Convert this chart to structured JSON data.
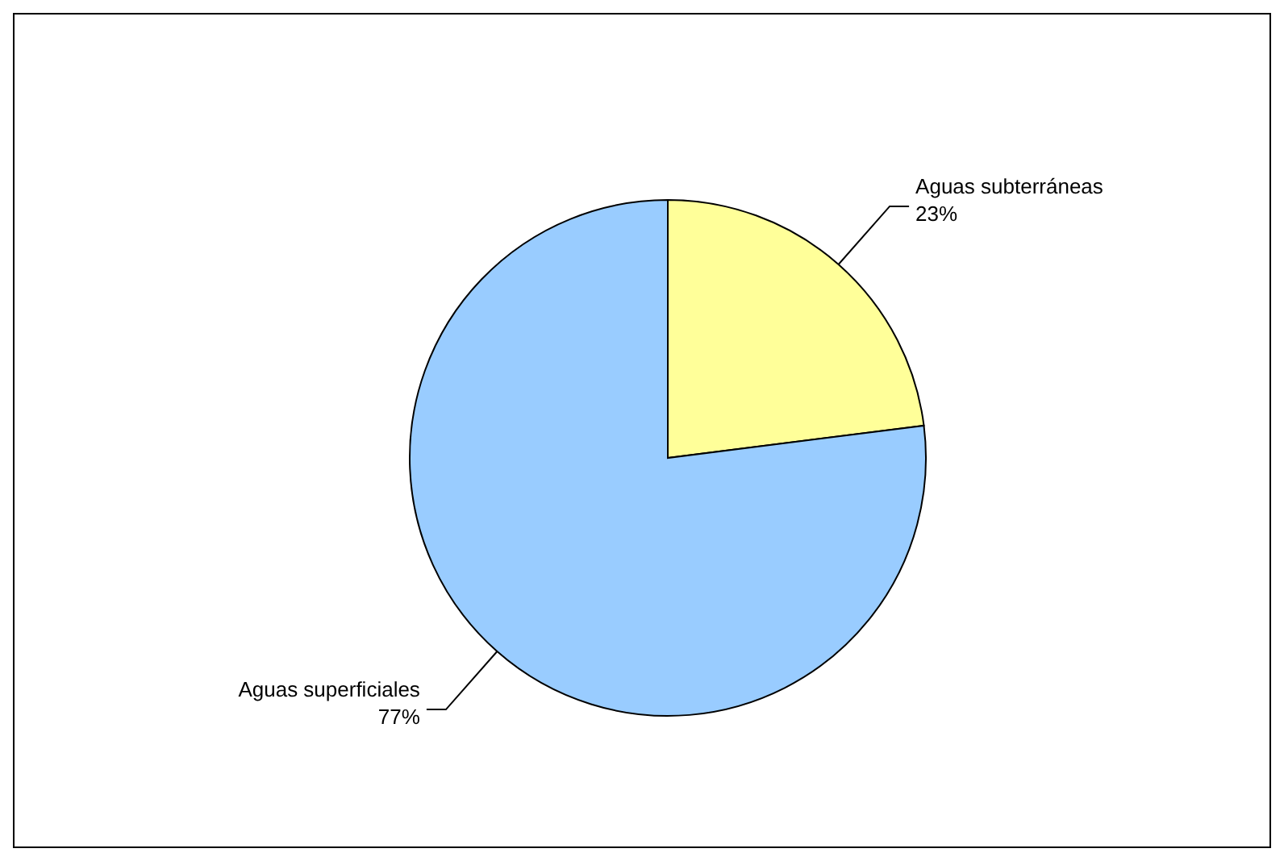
{
  "chart_data": {
    "type": "pie",
    "categories": [
      "Aguas subterráneas",
      "Aguas superficiales"
    ],
    "values": [
      23,
      77
    ],
    "value_labels": [
      "23%",
      "77%"
    ],
    "colors": [
      "#ffff99",
      "#99ccff"
    ],
    "legend": false
  }
}
